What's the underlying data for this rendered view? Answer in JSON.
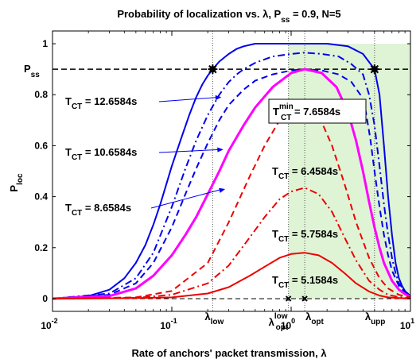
{
  "chart_data": {
    "type": "line",
    "title": "Probability of localization vs. λ, P",
    "title_sub": "ss",
    "title_suffix": " = 0.9, N=5",
    "xlabel": "Rate of anchors' packet transmission, λ",
    "ylabel_main": "P",
    "ylabel_sub": "loc",
    "x_scale": "log",
    "xlim": [
      0.01,
      10
    ],
    "ylim": [
      -0.05,
      1.05
    ],
    "x_ticks": [
      {
        "value": 0.01,
        "base": "10",
        "exp": "-2"
      },
      {
        "value": 0.1,
        "base": "10",
        "exp": "-1"
      },
      {
        "value": 1,
        "base": "10",
        "exp": "0"
      },
      {
        "value": 10,
        "base": "10",
        "exp": "1"
      }
    ],
    "y_ticks": [
      {
        "value": 0,
        "label": "0"
      },
      {
        "value": 0.2,
        "label": "0.2"
      },
      {
        "value": 0.4,
        "label": "0.4"
      },
      {
        "value": 0.6,
        "label": "0.6"
      },
      {
        "value": 0.8,
        "label": "0.8"
      },
      {
        "value": 1,
        "label": "1"
      }
    ],
    "pss": {
      "value": 0.9,
      "label_main": "P",
      "label_sub": "ss"
    },
    "shaded_region": {
      "x_from": 0.95,
      "x_to": 10,
      "y_to": 1,
      "color": "#dff3d5"
    },
    "vlines": [
      {
        "x": 0.22,
        "label_main": "λ",
        "label_sub": "low"
      },
      {
        "x": 0.95,
        "label_main": "λ",
        "label_sub": "opt",
        "label_sup": "low"
      },
      {
        "x": 1.3,
        "label_main": "λ",
        "label_sub": "opt"
      },
      {
        "x": 5.0,
        "label_main": "λ",
        "label_sub": "upp"
      }
    ],
    "intersection_markers": [
      {
        "x": 0.22,
        "y": 0.9
      },
      {
        "x": 5.0,
        "y": 0.9
      }
    ],
    "axis_markers": [
      {
        "x": 0.95,
        "y": 0
      },
      {
        "x": 1.3,
        "y": 0
      }
    ],
    "series": [
      {
        "label": "12.6584s",
        "color": "#0000ee",
        "dash": "solid",
        "width": 2,
        "x": [
          0.01,
          0.02,
          0.03,
          0.04,
          0.05,
          0.06,
          0.07,
          0.08,
          0.1,
          0.12,
          0.14,
          0.16,
          0.18,
          0.2,
          0.22,
          0.25,
          0.3,
          0.35,
          0.4,
          0.5,
          0.6,
          0.8,
          1.0,
          1.3,
          2.0,
          3.0,
          4.0,
          5.0,
          5.5,
          6.0,
          6.5,
          7.0,
          7.5,
          8.0,
          8.5,
          9.0,
          10.0
        ],
        "y": [
          0.0,
          0.01,
          0.035,
          0.08,
          0.14,
          0.21,
          0.29,
          0.37,
          0.52,
          0.63,
          0.72,
          0.79,
          0.84,
          0.875,
          0.9,
          0.93,
          0.96,
          0.98,
          0.99,
          1.0,
          1.0,
          1.0,
          1.0,
          1.0,
          1.0,
          0.99,
          0.96,
          0.9,
          0.8,
          0.6,
          0.4,
          0.25,
          0.14,
          0.08,
          0.05,
          0.03,
          0.01
        ]
      },
      {
        "label": "",
        "color": "#0000ee",
        "dash": "dashdot",
        "width": 2,
        "x": [
          0.01,
          0.03,
          0.05,
          0.07,
          0.1,
          0.13,
          0.16,
          0.2,
          0.25,
          0.3,
          0.35,
          0.4,
          0.5,
          0.7,
          1.0,
          1.3,
          1.8,
          2.5,
          3.2,
          4.0,
          4.5,
          5.0,
          5.5,
          6.0,
          6.5,
          7.0,
          7.5,
          8.0,
          9.0,
          10.0
        ],
        "y": [
          0.0,
          0.02,
          0.08,
          0.18,
          0.36,
          0.51,
          0.62,
          0.72,
          0.8,
          0.85,
          0.88,
          0.9,
          0.925,
          0.95,
          0.96,
          0.965,
          0.96,
          0.95,
          0.92,
          0.88,
          0.8,
          0.68,
          0.52,
          0.37,
          0.25,
          0.16,
          0.1,
          0.06,
          0.03,
          0.01
        ]
      },
      {
        "label": "10.6584s",
        "color": "#0000ee",
        "dash": "dashed",
        "width": 2,
        "x": [
          0.01,
          0.03,
          0.05,
          0.07,
          0.1,
          0.13,
          0.16,
          0.2,
          0.25,
          0.3,
          0.4,
          0.5,
          0.7,
          1.0,
          1.3,
          1.8,
          2.5,
          3.2,
          3.8,
          4.2,
          4.6,
          5.0,
          5.5,
          6.0,
          6.5,
          7.0,
          8.0,
          9.0,
          10.0
        ],
        "y": [
          0.0,
          0.015,
          0.06,
          0.14,
          0.28,
          0.41,
          0.51,
          0.61,
          0.7,
          0.76,
          0.82,
          0.855,
          0.88,
          0.895,
          0.9,
          0.895,
          0.88,
          0.85,
          0.8,
          0.74,
          0.63,
          0.5,
          0.36,
          0.25,
          0.17,
          0.11,
          0.05,
          0.025,
          0.01
        ]
      },
      {
        "label": "8.6584s",
        "color": "#ff00ff",
        "dash": "solid",
        "width": 3,
        "x": [
          0.01,
          0.03,
          0.05,
          0.07,
          0.1,
          0.13,
          0.16,
          0.2,
          0.25,
          0.3,
          0.4,
          0.5,
          0.7,
          1.0,
          1.3,
          1.8,
          2.4,
          3.0,
          3.5,
          4.0,
          4.5,
          5.0,
          5.5,
          6.0,
          7.0,
          8.0,
          9.0,
          10.0
        ],
        "y": [
          0.0,
          0.01,
          0.04,
          0.09,
          0.17,
          0.25,
          0.32,
          0.41,
          0.5,
          0.58,
          0.68,
          0.75,
          0.83,
          0.885,
          0.9,
          0.885,
          0.83,
          0.73,
          0.62,
          0.5,
          0.38,
          0.28,
          0.2,
          0.14,
          0.07,
          0.035,
          0.018,
          0.008
        ]
      },
      {
        "label": "7.6584s",
        "label_min": true,
        "color": "#ee0000",
        "dash": "dashed",
        "width": 2,
        "x": [
          0.01,
          0.05,
          0.1,
          0.2,
          0.3,
          0.45,
          0.6,
          0.8,
          1.0,
          1.3,
          1.7,
          2.2,
          2.8,
          3.5,
          4.5,
          5.5,
          6.5,
          8.0,
          10.0
        ],
        "y": [
          0.0,
          0.005,
          0.03,
          0.14,
          0.3,
          0.48,
          0.6,
          0.7,
          0.74,
          0.75,
          0.72,
          0.6,
          0.45,
          0.3,
          0.16,
          0.08,
          0.04,
          0.015,
          0.005
        ]
      },
      {
        "label": "6.4584s",
        "color": "#ee0000",
        "dash": "dashdot",
        "width": 2,
        "x": [
          0.01,
          0.05,
          0.1,
          0.2,
          0.3,
          0.45,
          0.6,
          0.8,
          1.0,
          1.3,
          1.7,
          2.2,
          2.8,
          3.5,
          4.5,
          5.5,
          6.5,
          8.0,
          10.0
        ],
        "y": [
          0.0,
          0.003,
          0.015,
          0.06,
          0.13,
          0.24,
          0.32,
          0.39,
          0.42,
          0.435,
          0.41,
          0.34,
          0.24,
          0.15,
          0.07,
          0.035,
          0.015,
          0.006,
          0.002
        ]
      },
      {
        "label": "5.7584s",
        "color": "#ee0000",
        "dash": "solid",
        "width": 2,
        "x": [
          0.01,
          0.05,
          0.1,
          0.2,
          0.3,
          0.45,
          0.6,
          0.8,
          1.0,
          1.3,
          1.7,
          2.2,
          2.8,
          3.5,
          4.5,
          5.5,
          6.5,
          8.0,
          10.0
        ],
        "y": [
          0.0,
          0.002,
          0.005,
          0.02,
          0.045,
          0.09,
          0.125,
          0.16,
          0.175,
          0.18,
          0.17,
          0.14,
          0.1,
          0.06,
          0.028,
          0.012,
          0.005,
          0.002,
          0.0
        ]
      }
    ],
    "annotations": [
      {
        "prefix_main": "T",
        "prefix_sub": "CT",
        "text": " = 12.6584s",
        "arrow_to": {
          "x": 0.26,
          "y": 0.79
        }
      },
      {
        "prefix_main": "T",
        "prefix_sub": "CT",
        "text": " = 10.6584s",
        "arrow_to": {
          "x": 0.27,
          "y": 0.585
        }
      },
      {
        "prefix_main": "T",
        "prefix_sub": "CT",
        "text": " = 8.6584s",
        "arrow_to": {
          "x": 0.28,
          "y": 0.43
        }
      },
      {
        "prefix_main": "T",
        "prefix_sub": "CT",
        "prefix_sup": "min",
        "text": " = 7.6584s",
        "boxed": true
      },
      {
        "prefix_main": "T",
        "prefix_sub": "CT",
        "text": " = 6.4584s"
      },
      {
        "prefix_main": "T",
        "prefix_sub": "CT",
        "text": " = 5.7584s"
      },
      {
        "prefix_main": "T",
        "prefix_sub": "CT",
        "text": " = 5.1584s"
      }
    ]
  }
}
